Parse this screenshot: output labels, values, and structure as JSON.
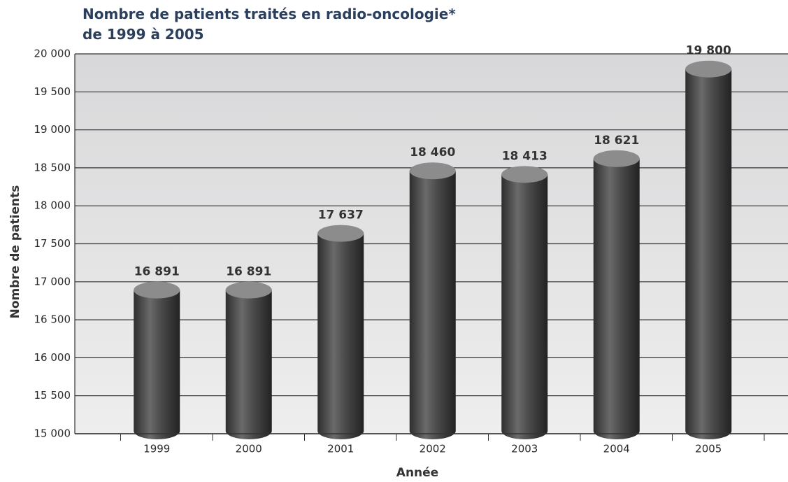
{
  "chart_data": {
    "type": "bar",
    "title": [
      "Nombre de patients traités en radio-oncologie*",
      "de 1999 à 2005"
    ],
    "ylabel": "Nombre de patients",
    "xlabel": "Année",
    "categories": [
      "1999",
      "2000",
      "2001",
      "2002",
      "2003",
      "2004",
      "2005"
    ],
    "values": [
      16891,
      16891,
      17637,
      18460,
      18413,
      18621,
      19800
    ],
    "value_labels": [
      "16 891",
      "16 891",
      "17 637",
      "18 460",
      "18 413",
      "18 621",
      "19 800"
    ],
    "color": "#4a4a4a",
    "ylim": [
      15000,
      20000
    ],
    "yticks": [
      {
        "value": 15000,
        "label": "15 000"
      },
      {
        "value": 15500,
        "label": "15 500"
      },
      {
        "value": 16000,
        "label": "16 000"
      },
      {
        "value": 16500,
        "label": "16 500"
      },
      {
        "value": 17000,
        "label": "17 000"
      },
      {
        "value": 17500,
        "label": "17 500"
      },
      {
        "value": 18000,
        "label": "18 000"
      },
      {
        "value": 18500,
        "label": "18 500"
      },
      {
        "value": 19000,
        "label": "19 000"
      },
      {
        "value": 19500,
        "label": "19 500"
      },
      {
        "value": 20000,
        "label": "20 000"
      }
    ],
    "grid": true
  }
}
